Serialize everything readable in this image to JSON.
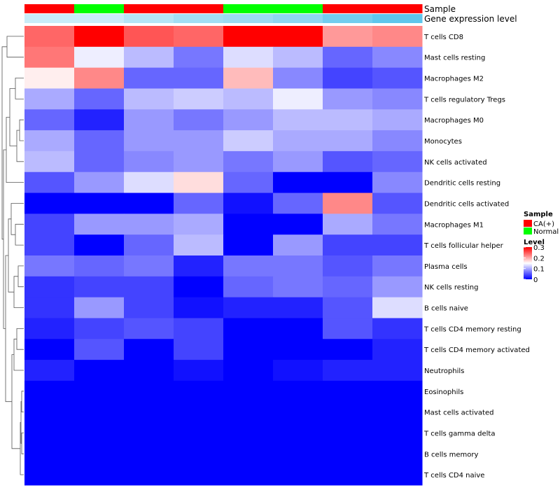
{
  "chart_data": {
    "type": "heatmap",
    "annotation_rows": [
      "Sample",
      "Gene expression level"
    ],
    "columns": [
      {
        "sample": "CA(+)",
        "expression_level": 0.2
      },
      {
        "sample": "Normal",
        "expression_level": 0.2
      },
      {
        "sample": "CA(+)",
        "expression_level": 0.35
      },
      {
        "sample": "CA(+)",
        "expression_level": 0.5
      },
      {
        "sample": "Normal",
        "expression_level": 0.55
      },
      {
        "sample": "Normal",
        "expression_level": 0.65
      },
      {
        "sample": "CA(+)",
        "expression_level": 0.85
      },
      {
        "sample": "CA(+)",
        "expression_level": 1.0
      }
    ],
    "rows": [
      "T cells CD8",
      "Mast cells resting",
      "Macrophages M2",
      "T cells regulatory  Tregs",
      "Macrophages M0",
      "Monocytes",
      "NK cells activated",
      "Dendritic cells resting",
      "Dendritic cells activated",
      "Macrophages M1",
      "T cells follicular helper",
      "Plasma cells",
      "NK cells resting",
      "B cells naive",
      "T cells CD4 memory resting",
      "T cells CD4 memory activated",
      "Neutrophils",
      "Eosinophils",
      "Mast cells activated",
      "T cells gamma delta",
      "B cells memory",
      "T cells CD4 naive"
    ],
    "values": [
      [
        0.24,
        0.3,
        0.25,
        0.24,
        0.3,
        0.3,
        0.21,
        0.22
      ],
      [
        0.23,
        0.14,
        0.11,
        0.07,
        0.13,
        0.11,
        0.06,
        0.08
      ],
      [
        0.16,
        0.22,
        0.06,
        0.06,
        0.19,
        0.08,
        0.04,
        0.05
      ],
      [
        0.1,
        0.06,
        0.11,
        0.12,
        0.11,
        0.14,
        0.09,
        0.08
      ],
      [
        0.06,
        0.02,
        0.09,
        0.07,
        0.09,
        0.11,
        0.11,
        0.1
      ],
      [
        0.1,
        0.06,
        0.09,
        0.09,
        0.12,
        0.1,
        0.1,
        0.08
      ],
      [
        0.11,
        0.06,
        0.08,
        0.09,
        0.07,
        0.09,
        0.05,
        0.06
      ],
      [
        0.05,
        0.09,
        0.13,
        0.17,
        0.06,
        0.0,
        0.0,
        0.08
      ],
      [
        0.0,
        0.0,
        0.0,
        0.06,
        0.01,
        0.06,
        0.22,
        0.05
      ],
      [
        0.04,
        0.09,
        0.09,
        0.1,
        0.0,
        0.0,
        0.1,
        0.07
      ],
      [
        0.04,
        0.0,
        0.06,
        0.11,
        0.0,
        0.09,
        0.04,
        0.04
      ],
      [
        0.07,
        0.06,
        0.07,
        0.02,
        0.07,
        0.07,
        0.05,
        0.07
      ],
      [
        0.03,
        0.04,
        0.04,
        0.0,
        0.06,
        0.07,
        0.06,
        0.09
      ],
      [
        0.03,
        0.09,
        0.04,
        0.01,
        0.02,
        0.02,
        0.05,
        0.13
      ],
      [
        0.02,
        0.04,
        0.05,
        0.04,
        0.0,
        0.0,
        0.05,
        0.03
      ],
      [
        0.0,
        0.05,
        0.0,
        0.04,
        0.0,
        0.0,
        0.0,
        0.02
      ],
      [
        0.02,
        0.0,
        0.0,
        0.01,
        0.0,
        0.01,
        0.02,
        0.02
      ],
      [
        0.0,
        0.0,
        0.0,
        0.0,
        0.0,
        0.0,
        0.0,
        0.0
      ],
      [
        0.0,
        0.0,
        0.0,
        0.0,
        0.0,
        0.0,
        0.0,
        0.0
      ],
      [
        0.0,
        0.0,
        0.0,
        0.0,
        0.0,
        0.0,
        0.0,
        0.0
      ],
      [
        0.0,
        0.0,
        0.0,
        0.0,
        0.0,
        0.0,
        0.0,
        0.0
      ],
      [
        0.0,
        0.0,
        0.0,
        0.0,
        0.0,
        0.0,
        0.0,
        0.0
      ]
    ],
    "color_scale": {
      "min": 0,
      "mid": 0.15,
      "max": 0.3,
      "low": "#0000ff",
      "midcolor": "#ffffff",
      "high": "#ff0000"
    },
    "row_dendrogram": true,
    "legend": {
      "placement": "right",
      "sample_title": "Sample",
      "sample_items": [
        {
          "label": "CA(+)",
          "color": "#ff0000"
        },
        {
          "label": "Normal",
          "color": "#00ff00"
        }
      ],
      "level_title": "Level",
      "level_ticks": [
        "0.3",
        "0.2",
        "0.1",
        "0"
      ]
    },
    "colors": {
      "ca": "#ff0000",
      "normal": "#00ff00",
      "expr_low": "#e4f5fb",
      "expr_high": "#5fc6ec"
    }
  }
}
